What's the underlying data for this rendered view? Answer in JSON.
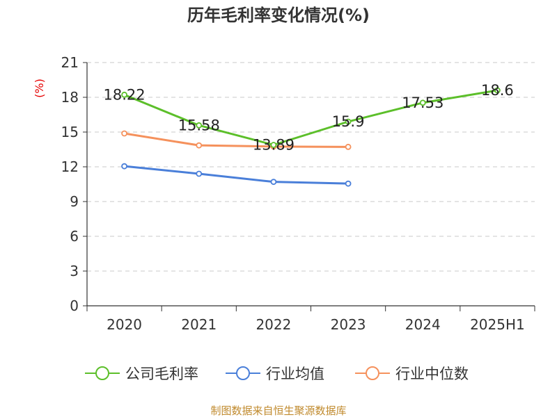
{
  "chart_data": {
    "type": "line",
    "title": "历年毛利率变化情况(%)",
    "unit_label": "(%)",
    "categories": [
      "2020",
      "2021",
      "2022",
      "2023",
      "2024",
      "2025H1"
    ],
    "ylim": [
      0,
      21
    ],
    "yticks": [
      0,
      3,
      6,
      9,
      12,
      15,
      18,
      21
    ],
    "grid": true,
    "legend_position": "bottom",
    "series": [
      {
        "name": "公司毛利率",
        "color": "#5cbf2a",
        "values": [
          18.22,
          15.58,
          13.89,
          15.9,
          17.53,
          18.6
        ],
        "labels": [
          "18.22",
          "15.58",
          "13.89",
          "15.9",
          "17.53",
          "18.6"
        ]
      },
      {
        "name": "行业均值",
        "color": "#4a7fd9",
        "values": [
          12.05,
          11.4,
          10.7,
          10.55,
          null,
          null
        ]
      },
      {
        "name": "行业中位数",
        "color": "#f5915c",
        "values": [
          14.88,
          13.85,
          13.75,
          13.72,
          null,
          null
        ]
      }
    ],
    "source": "制图数据来自恒生聚源数据库"
  }
}
